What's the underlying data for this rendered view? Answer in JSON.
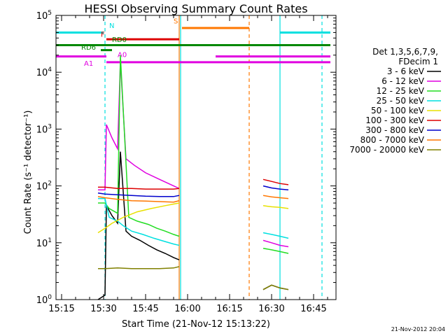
{
  "chart_data": {
    "type": "line",
    "title": "HESSI Observing Summary Count Rates",
    "xlabel": "Start Time (21-Nov-12 15:13:22)",
    "ylabel": "Count Rate (s⁻¹ detector⁻¹)",
    "xlim": [
      "15:13",
      "16:53"
    ],
    "ylim": [
      1,
      100000
    ],
    "yscale": "log",
    "x_ticks": [
      "15:15",
      "15:30",
      "15:45",
      "16:00",
      "16:15",
      "16:30",
      "16:45"
    ],
    "y_ticks": [
      {
        "base": "10",
        "exp": "0",
        "value": 1
      },
      {
        "base": "10",
        "exp": "1",
        "value": 10
      },
      {
        "base": "10",
        "exp": "2",
        "value": 100
      },
      {
        "base": "10",
        "exp": "3",
        "value": 1000
      },
      {
        "base": "10",
        "exp": "4",
        "value": 10000
      },
      {
        "base": "10",
        "exp": "5",
        "value": 100000
      }
    ],
    "grid": false,
    "legend": {
      "position": "right",
      "title_lines": [
        "Det 1,3,5,6,7,9,",
        "FDecim 1"
      ],
      "entries": [
        {
          "label": "3 - 6 keV",
          "color": "#000000"
        },
        {
          "label": "6 - 12 keV",
          "color": "#e000e0"
        },
        {
          "label": "12 - 25 keV",
          "color": "#22dd22"
        },
        {
          "label": "25 - 50 keV",
          "color": "#00e0e0"
        },
        {
          "label": "50 - 100 keV",
          "color": "#e8e000"
        },
        {
          "label": "100 - 300 keV",
          "color": "#dd0000"
        },
        {
          "label": "300 - 800 keV",
          "color": "#0000cc"
        },
        {
          "label": "800 - 7000 keV",
          "color": "#ff7700"
        },
        {
          "label": "7000 - 20000 keV",
          "color": "#808000"
        }
      ]
    },
    "series": [
      {
        "name": "3 - 6 keV",
        "color": "#000000",
        "x": [
          "15:28",
          "15:30.5",
          "15:31",
          "15:33",
          "15:35",
          "15:36",
          "15:38",
          "15:40",
          "15:43",
          "15:46",
          "15:49",
          "15:52",
          "15:55",
          "15:57"
        ],
        "values": [
          1,
          1.2,
          45,
          30,
          22,
          400,
          16,
          13,
          11,
          9,
          7.5,
          6.5,
          5.5,
          5
        ]
      },
      {
        "name": "6 - 12 keV",
        "color": "#e000e0",
        "x": [
          "15:28",
          "15:30.5",
          "15:31",
          "15:33",
          "15:35",
          "15:36",
          "15:38",
          "15:41",
          "15:45",
          "15:50",
          "15:55",
          "15:57"
        ],
        "values": [
          85,
          85,
          1200,
          700,
          450,
          15000,
          300,
          230,
          170,
          130,
          100,
          90
        ]
      },
      {
        "name": "12 - 25 keV",
        "color": "#22dd22",
        "x": [
          "15:28",
          "15:30.5",
          "15:32",
          "15:35",
          "15:36",
          "15:39",
          "15:42",
          "15:46",
          "15:49",
          "15:52",
          "15:55",
          "15:57"
        ],
        "values": [
          50,
          50,
          40,
          33,
          20000,
          28,
          24,
          21,
          18,
          16,
          14,
          13
        ]
      },
      {
        "name": "25 - 50 keV",
        "color": "#00e0e0",
        "x": [
          "15:28",
          "15:30.5",
          "15:32",
          "15:35",
          "15:37",
          "15:40",
          "15:44",
          "15:48",
          "15:52",
          "15:55",
          "15:57"
        ],
        "values": [
          60,
          60,
          28,
          24,
          20,
          16,
          14,
          12,
          10.5,
          9.5,
          9
        ]
      },
      {
        "name": "50 - 100 keV",
        "color": "#e8e000",
        "x": [
          "15:28",
          "15:30.5",
          "15:33",
          "15:37",
          "15:42",
          "15:47",
          "15:52",
          "15:57"
        ],
        "values": [
          15,
          18,
          22,
          28,
          35,
          40,
          45,
          50
        ]
      },
      {
        "name": "100 - 300 keV",
        "color": "#dd0000",
        "x": [
          "15:28",
          "15:30.5",
          "15:35",
          "15:40",
          "15:45",
          "15:50",
          "15:55",
          "15:57"
        ],
        "values": [
          95,
          95,
          90,
          90,
          88,
          88,
          88,
          90
        ]
      },
      {
        "name": "300 - 800 keV",
        "color": "#0000cc",
        "x": [
          "15:28",
          "15:30.5",
          "15:35",
          "15:40",
          "15:45",
          "15:50",
          "15:55",
          "15:57"
        ],
        "values": [
          75,
          72,
          70,
          68,
          66,
          65,
          65,
          68
        ]
      },
      {
        "name": "800 - 7000 keV",
        "color": "#ff7700",
        "x": [
          "15:28",
          "15:30.5",
          "15:35",
          "15:40",
          "15:45",
          "15:50",
          "15:55",
          "15:57"
        ],
        "values": [
          65,
          62,
          58,
          55,
          54,
          53,
          52,
          55
        ]
      },
      {
        "name": "7000 - 20000 keV",
        "color": "#808000",
        "x": [
          "15:28",
          "15:30.5",
          "15:35",
          "15:40",
          "15:45",
          "15:50",
          "15:55",
          "15:57"
        ],
        "values": [
          3.5,
          3.5,
          3.6,
          3.5,
          3.5,
          3.5,
          3.6,
          3.8
        ]
      }
    ],
    "late_series": [
      {
        "name": "3 - 6 keV",
        "color": "#000000",
        "x": [
          "16:27",
          "16:30",
          "16:33",
          "16:36"
        ],
        "values": [
          1.5,
          1.8,
          1.6,
          1.5
        ]
      },
      {
        "name": "6 - 12 keV",
        "color": "#e000e0",
        "x": [
          "16:27",
          "16:30",
          "16:33",
          "16:36"
        ],
        "values": [
          11,
          10,
          9,
          8.5
        ]
      },
      {
        "name": "12 - 25 keV",
        "color": "#22dd22",
        "x": [
          "16:27",
          "16:30",
          "16:33",
          "16:36"
        ],
        "values": [
          8,
          7.5,
          7,
          6.5
        ]
      },
      {
        "name": "25 - 50 keV",
        "color": "#00e0e0",
        "x": [
          "16:27",
          "16:30",
          "16:33",
          "16:36"
        ],
        "values": [
          15,
          14,
          13,
          12
        ]
      },
      {
        "name": "50 - 100 keV",
        "color": "#e8e000",
        "x": [
          "16:27",
          "16:30",
          "16:33",
          "16:36"
        ],
        "values": [
          45,
          43,
          42,
          40
        ]
      },
      {
        "name": "100 - 300 keV",
        "color": "#dd0000",
        "x": [
          "16:27",
          "16:30",
          "16:33",
          "16:36"
        ],
        "values": [
          130,
          120,
          110,
          105
        ]
      },
      {
        "name": "300 - 800 keV",
        "color": "#0000cc",
        "x": [
          "16:27",
          "16:30",
          "16:33",
          "16:36"
        ],
        "values": [
          100,
          92,
          88,
          85
        ]
      },
      {
        "name": "800 - 7000 keV",
        "color": "#ff7700",
        "x": [
          "16:27",
          "16:30",
          "16:33",
          "16:36"
        ],
        "values": [
          68,
          64,
          62,
          60
        ]
      },
      {
        "name": "7000 - 20000 keV",
        "color": "#808000",
        "x": [
          "16:27",
          "16:30",
          "16:33",
          "16:36"
        ],
        "values": [
          1.5,
          1.8,
          1.6,
          1.5
        ]
      }
    ],
    "flag_bars": [
      {
        "label": "N",
        "color": "#00e0e0",
        "level": 50000,
        "segments": [
          [
            "15:13",
            "15:30"
          ],
          [
            "16:33",
            "16:51"
          ]
        ]
      },
      {
        "label": "F",
        "color": "#dd0000",
        "level": 38000,
        "segments": [
          [
            "15:31",
            "15:57"
          ]
        ]
      },
      {
        "label": "RD6",
        "color": "#008800",
        "level": 30000,
        "segments": [
          [
            "15:13",
            "16:51"
          ]
        ]
      },
      {
        "label": "RD6",
        "color": "#008800",
        "level": 24500,
        "segments": [
          [
            "15:29",
            "15:33"
          ]
        ]
      },
      {
        "label": "A1",
        "color": "#e000e0",
        "level": 19000,
        "segments": [
          [
            "15:13",
            "15:31"
          ],
          [
            "16:10",
            "16:51"
          ]
        ]
      },
      {
        "label": "A0",
        "color": "#e000e0",
        "level": 15000,
        "segments": [
          [
            "15:31",
            "16:51"
          ]
        ]
      },
      {
        "label": "S",
        "color": "#ff7700",
        "level": 60000,
        "segments": [
          [
            "15:58",
            "16:22"
          ]
        ]
      }
    ],
    "flag_labels": [
      {
        "text": "N",
        "color": "#00e0e0",
        "x": "15:32",
        "y": 60000
      },
      {
        "text": "F",
        "color": "#dd0000",
        "x": "15:29",
        "y": 42000
      },
      {
        "text": "RD0",
        "color": "#008800",
        "x": "15:33",
        "y": 34000
      },
      {
        "text": "RD6",
        "color": "#008800",
        "x": "15:22",
        "y": 25000
      },
      {
        "text": "A0",
        "color": "#e000e0",
        "x": "15:35",
        "y": 18500
      },
      {
        "text": "A1",
        "color": "#e000e0",
        "x": "15:23",
        "y": 13000
      },
      {
        "text": "S",
        "color": "#ff7700",
        "x": "15:55",
        "y": 72000
      }
    ],
    "vertical_markers": [
      {
        "x": "15:30.5",
        "color": "#00e0e0",
        "dashed": true
      },
      {
        "x": "15:57",
        "color": "#ff7700",
        "dashed": false
      },
      {
        "x": "15:57.5",
        "color": "#00e0e0",
        "dashed": false
      },
      {
        "x": "16:22",
        "color": "#ff7700",
        "dashed": true
      },
      {
        "x": "16:33",
        "color": "#00e0e0",
        "dashed": false
      },
      {
        "x": "16:48",
        "color": "#00e0e0",
        "dashed": true
      }
    ],
    "annotations": [
      {
        "text": "21-Nov-2012 20:04",
        "position": "bottom-right"
      }
    ]
  }
}
